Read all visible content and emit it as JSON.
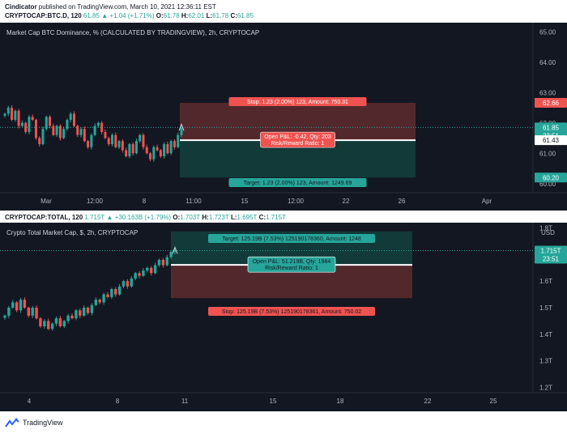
{
  "header": {
    "author": "Cindicator",
    "published_text": "published on TradingView.com, March 10, 2021 12:36:11 EST"
  },
  "chart1": {
    "symbol_line": {
      "symbol": "CRYPTOCAP:BTC.D, 120",
      "last": "61.85",
      "change": "+1.04 (+1.71%)",
      "o": "61.78",
      "h": "62.01",
      "l": "61.78",
      "c": "61.85"
    },
    "title": "Market Cap BTC Dominance, % (CALCULATED BY TRADINGVIEW), 2h, CRYPTOCAP",
    "y_ticks": [
      "65.00",
      "64.00",
      "63.00",
      "62.00",
      "61.00",
      "60.00"
    ],
    "x_ticks": [
      "Mar",
      "12:00",
      "8",
      "11:00",
      "15",
      "12:00",
      "22",
      "26",
      "Apr"
    ],
    "stop_label": "Stop: 1.23 (2.00%) 123, Amount: 750.31",
    "target_label": "Target: 1.23 (2.00%) 123, Amount: 1249.69",
    "pnl_line1": "Open P&L: -0.42, Qty: 203",
    "pnl_line2": "Risk/Reward Ratio: 1",
    "badges": {
      "stop": "62.66",
      "last": "61.85",
      "countdown": "23:51",
      "entry": "61.43",
      "target": "60.20"
    }
  },
  "chart2": {
    "symbol_line": {
      "symbol": "CRYPTOCAP:TOTAL, 120",
      "last": "1.715T",
      "change": "+30.163B (+1.79%)",
      "o": "1.703T",
      "h": "1.723T",
      "l": "1.695T",
      "c": "1.715T"
    },
    "title": "Crypto Total Market Cap, $, 2h, CRYPTOCAP",
    "currency": "USD",
    "y_ticks": [
      "1.8T",
      "1.7T",
      "1.6T",
      "1.5T",
      "1.4T",
      "1.3T",
      "1.2T"
    ],
    "x_ticks": [
      "4",
      "8",
      "11",
      "15",
      "18",
      "22",
      "25"
    ],
    "target_label": "Target: 125.19B (7.53%) 125190178360, Amount: 1248",
    "stop_label": "Stop: 125.19B (7.53%) 125190178361, Amount: 750.02",
    "pnl_line1": "Open P&L: 51.219B, Qty: 1984",
    "pnl_line2": "Risk/Reward Ratio: 1",
    "badges": {
      "last": "1.715T",
      "countdown": "23:51"
    }
  },
  "footer": {
    "brand": "TradingView"
  },
  "colors": {
    "bg": "#131722",
    "up": "#26a69a",
    "down": "#ef5350",
    "stop_zone": "#5b2a2e",
    "target_zone": "#123e3c",
    "text": "#d1d4dc"
  },
  "chart_data": [
    {
      "type": "candlestick",
      "title": "Market Cap BTC Dominance, % (CALCULATED BY TRADINGVIEW), 2h, CRYPTOCAP",
      "ylim": [
        59.7,
        65.3
      ],
      "close": [
        62.3,
        62.5,
        62.1,
        62.4,
        61.9,
        62.0,
        61.7,
        62.2,
        62.1,
        61.5,
        61.3,
        61.8,
        62.2,
        61.9,
        61.6,
        61.9,
        61.5,
        61.8,
        62.1,
        62.3,
        61.9,
        61.6,
        61.8,
        61.4,
        61.2,
        61.6,
        61.9,
        62.0,
        61.7,
        61.5,
        61.3,
        61.6,
        61.2,
        61.4,
        61.1,
        60.9,
        61.3,
        61.0,
        61.4,
        61.6,
        61.2,
        61.0,
        60.8,
        61.2,
        61.1,
        60.9,
        61.3,
        61.0,
        61.4,
        61.2,
        61.6,
        61.85
      ],
      "position": {
        "entry": 61.43,
        "stop": 62.66,
        "target": 60.2
      }
    },
    {
      "type": "candlestick",
      "title": "Crypto Total Market Cap, $, 2h, CRYPTOCAP",
      "ylim": [
        1.18,
        1.82
      ],
      "close": [
        1.47,
        1.5,
        1.52,
        1.49,
        1.53,
        1.5,
        1.47,
        1.5,
        1.46,
        1.43,
        1.45,
        1.42,
        1.44,
        1.46,
        1.43,
        1.45,
        1.47,
        1.46,
        1.49,
        1.47,
        1.5,
        1.48,
        1.51,
        1.53,
        1.52,
        1.55,
        1.54,
        1.57,
        1.55,
        1.58,
        1.6,
        1.58,
        1.61,
        1.63,
        1.62,
        1.64,
        1.65,
        1.63,
        1.66,
        1.68,
        1.66,
        1.69,
        1.71,
        1.715
      ],
      "position": {
        "entry": 1.661,
        "stop": 1.536,
        "target": 1.787
      }
    }
  ]
}
